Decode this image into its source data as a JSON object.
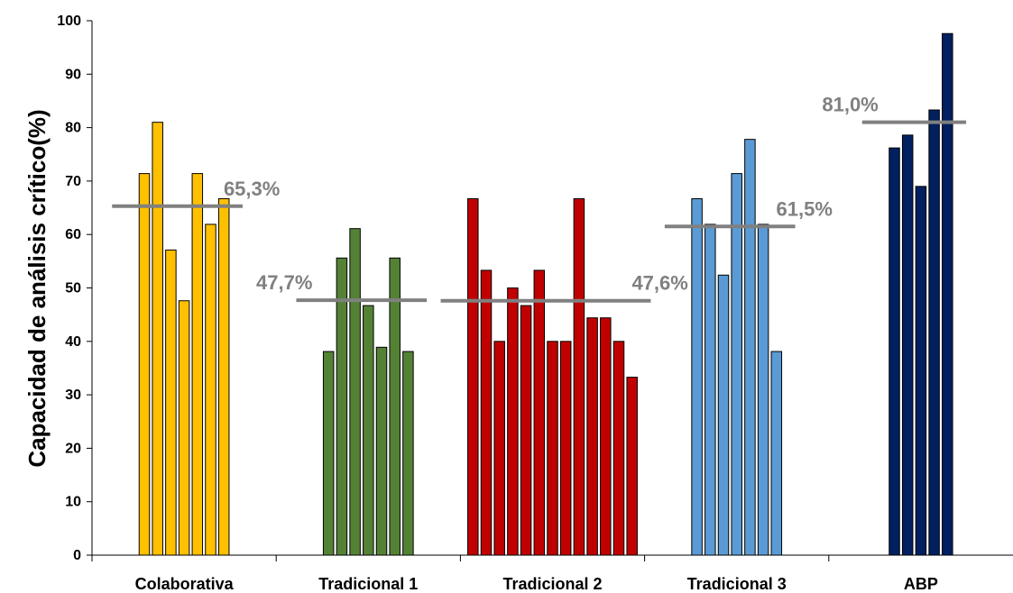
{
  "chart_data": {
    "type": "bar",
    "ylabel": "Capacidad de análisis crítico(%)",
    "xlabel": "",
    "ylim": [
      0,
      100
    ],
    "yticks": [
      "0",
      "10",
      "20",
      "30",
      "40",
      "50",
      "60",
      "70",
      "80",
      "90",
      "100"
    ],
    "grid": false,
    "legend": "none",
    "groups": [
      {
        "name": "Colaborativa",
        "color": "#FFC000",
        "values": [
          71.4,
          81.0,
          57.1,
          47.6,
          71.4,
          61.9,
          66.7
        ],
        "mean": 65.3,
        "mean_label": "65,3%",
        "label_side": "right"
      },
      {
        "name": "Tradicional 1",
        "color": "#548235",
        "values": [
          38.1,
          55.6,
          61.1,
          46.7,
          38.9,
          55.6,
          38.1
        ],
        "mean": 47.7,
        "mean_label": "47,7%",
        "label_side": "left"
      },
      {
        "name": "Tradicional 2",
        "color": "#C00000",
        "values": [
          66.7,
          53.3,
          40.0,
          50.0,
          46.7,
          53.3,
          40.0,
          40.0,
          66.7,
          44.4,
          44.4,
          40.0,
          33.3
        ],
        "mean": 47.6,
        "mean_label": "47,6%",
        "label_side": "right"
      },
      {
        "name": "Tradicional 3",
        "color": "#5B9BD5",
        "values": [
          66.7,
          61.9,
          52.4,
          71.4,
          77.8,
          61.9,
          38.1
        ],
        "mean": 61.5,
        "mean_label": "61,5%",
        "label_side": "right"
      },
      {
        "name": "ABP",
        "color": "#002060",
        "values": [
          76.2,
          78.6,
          69.0,
          83.3,
          97.6
        ],
        "mean": 81.0,
        "mean_label": "81,0%",
        "label_side": "left"
      }
    ]
  }
}
